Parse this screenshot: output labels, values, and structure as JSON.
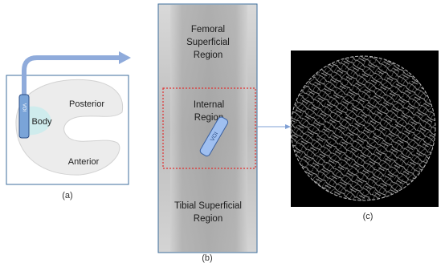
{
  "panel_a": {
    "posterior": "Posterior",
    "body": "Body",
    "voi": "VOI",
    "anterior": "Anterior",
    "label": "(a)"
  },
  "panel_b": {
    "femoral_lines": [
      "Femoral",
      "Superficial",
      "Region"
    ],
    "internal_lines": [
      "Internal",
      "Region"
    ],
    "voi": "VOI",
    "tibial_lines": [
      "Tibial Superficial",
      "Region"
    ],
    "label": "(b)"
  },
  "panel_c": {
    "label": "(c)"
  }
}
